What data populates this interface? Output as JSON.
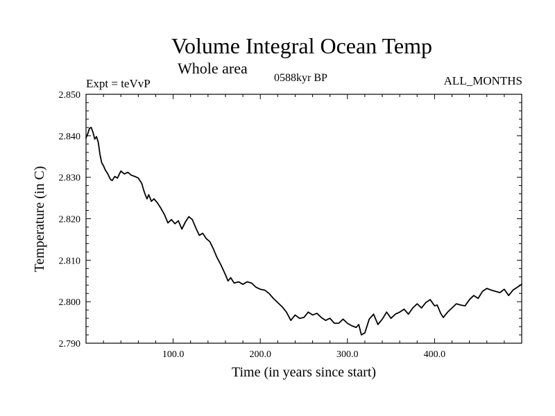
{
  "chart_data": {
    "type": "line",
    "title": "Volume Integral Ocean Temp",
    "subtitle": "Whole area",
    "annotations": {
      "left": "Expt = teVvP",
      "center": "0588kyr BP",
      "right": "ALL_MONTHS"
    },
    "xlabel": "Time (in years since start)",
    "ylabel": "Temperature (in C)",
    "xlim": [
      0,
      500
    ],
    "ylim": [
      2.79,
      2.85
    ],
    "x_ticks": [
      100,
      200,
      300,
      400
    ],
    "x_tick_labels": [
      "100.0",
      "200.0",
      "300.0",
      "400.0"
    ],
    "y_ticks": [
      2.79,
      2.8,
      2.81,
      2.82,
      2.83,
      2.84,
      2.85
    ],
    "y_tick_labels": [
      "2.790",
      "2.800",
      "2.810",
      "2.820",
      "2.830",
      "2.840",
      "2.850"
    ],
    "grid": false,
    "series": [
      {
        "color": "#000000",
        "x": [
          0,
          2,
          4,
          6,
          8,
          10,
          12,
          14,
          16,
          18,
          20,
          22,
          25,
          28,
          30,
          33,
          36,
          40,
          44,
          48,
          52,
          56,
          60,
          64,
          66,
          68,
          70,
          72,
          75,
          78,
          82,
          86,
          90,
          94,
          98,
          102,
          106,
          110,
          114,
          118,
          122,
          126,
          130,
          134,
          138,
          142,
          146,
          150,
          155,
          160,
          163,
          166,
          170,
          175,
          180,
          185,
          190,
          195,
          200,
          205,
          210,
          215,
          220,
          225,
          230,
          235,
          240,
          245,
          250,
          255,
          260,
          265,
          270,
          275,
          280,
          285,
          290,
          295,
          300,
          305,
          310,
          313,
          316,
          320,
          325,
          330,
          335,
          340,
          345,
          350,
          355,
          360,
          365,
          370,
          375,
          380,
          385,
          390,
          395,
          400,
          403,
          407,
          410,
          415,
          420,
          425,
          430,
          435,
          440,
          445,
          450,
          455,
          460,
          465,
          470,
          475,
          480,
          485,
          490,
          495,
          500
        ],
        "y": [
          2.8395,
          2.8405,
          2.8418,
          2.842,
          2.8408,
          2.8392,
          2.8398,
          2.8385,
          2.8355,
          2.8335,
          2.8328,
          2.8318,
          2.8308,
          2.8295,
          2.8292,
          2.8302,
          2.8298,
          2.8315,
          2.8308,
          2.8312,
          2.8305,
          2.8302,
          2.8298,
          2.8285,
          2.827,
          2.8258,
          2.8248,
          2.8258,
          2.8242,
          2.8248,
          2.8238,
          2.8225,
          2.821,
          2.819,
          2.8198,
          2.8188,
          2.8195,
          2.8175,
          2.8192,
          2.8205,
          2.8198,
          2.8178,
          2.816,
          2.8165,
          2.8152,
          2.8145,
          2.8128,
          2.8108,
          2.8088,
          2.8065,
          2.805,
          2.8058,
          2.8045,
          2.8048,
          2.8042,
          2.8048,
          2.8045,
          2.8035,
          2.803,
          2.8028,
          2.802,
          2.8008,
          2.7998,
          2.7988,
          2.7975,
          2.7955,
          2.7968,
          2.796,
          2.7962,
          2.7975,
          2.7968,
          2.7972,
          2.7962,
          2.7955,
          2.796,
          2.7948,
          2.7948,
          2.7958,
          2.7948,
          2.7942,
          2.7938,
          2.7945,
          2.792,
          2.7925,
          2.7958,
          2.797,
          2.7945,
          2.7958,
          2.7975,
          2.796,
          2.797,
          2.7975,
          2.7982,
          2.797,
          2.7985,
          2.7995,
          2.7985,
          2.7998,
          2.8005,
          2.799,
          2.7992,
          2.7972,
          2.7962,
          2.7975,
          2.7985,
          2.7995,
          2.7992,
          2.799,
          2.8005,
          2.8015,
          2.8008,
          2.8025,
          2.8032,
          2.8028,
          2.8025,
          2.8022,
          2.803,
          2.8015,
          2.8028,
          2.8035,
          2.8042
        ]
      }
    ]
  }
}
